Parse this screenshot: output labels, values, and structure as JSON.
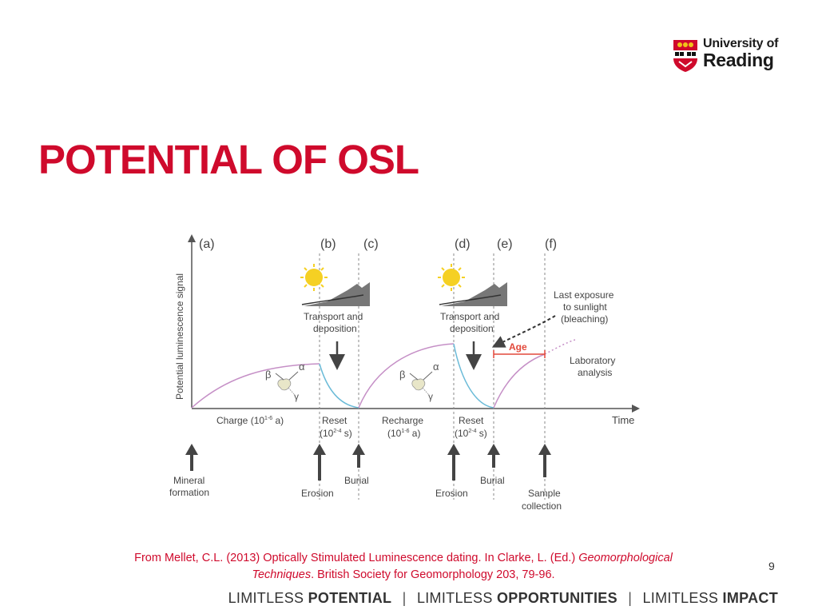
{
  "header": {
    "logo": {
      "line1": "University of",
      "line2": "Reading"
    },
    "title": "POTENTIAL OF OSL"
  },
  "figure": {
    "ylabel": "Potential luminescence signal",
    "xlabel": "Time",
    "phase_labels": [
      "(a)",
      "(b)",
      "(c)",
      "(d)",
      "(e)",
      "(f)"
    ],
    "stage_labels": {
      "charge": "Charge (10",
      "charge_sup": "1-6",
      "charge_end": " a)",
      "reset1_a": "Reset",
      "reset1_b": "(10",
      "reset1_sup": "2-4",
      "reset1_c": " s)",
      "recharge_a": "Recharge",
      "recharge_b": "(10",
      "recharge_sup": "1-6",
      "recharge_c": " a)",
      "reset2_a": "Reset",
      "reset2_b": "(10",
      "reset2_sup": "2-4",
      "reset2_c": " s)"
    },
    "transport1_a": "Transport and",
    "transport1_b": "deposition",
    "transport2_a": "Transport and",
    "transport2_b": "deposition",
    "last_exposure_a": "Last exposure",
    "last_exposure_b": "to sunlight",
    "last_exposure_c": "(bleaching)",
    "age_label": "Age",
    "lab_a": "Laboratory",
    "lab_b": "analysis",
    "greek": {
      "beta": "β",
      "alpha": "α",
      "gamma": "γ"
    },
    "events": {
      "mineral_a": "Mineral",
      "mineral_b": "formation",
      "erosion1": "Erosion",
      "burial1": "Burial",
      "erosion2": "Erosion",
      "burial2": "Burial",
      "sample_a": "Sample",
      "sample_b": "collection"
    },
    "colors": {
      "charge_curve": "#c58fc6",
      "reset_curve": "#6bbbd8",
      "age": "#e2493b",
      "sun": "#f5d023"
    }
  },
  "citation": {
    "prefix": "From Mellet, C.L.  (2013) Optically Stimulated Luminescence dating. In Clarke, L. (Ed.) ",
    "italic1": "Geomorphological",
    "italic2": "Techniques",
    "suffix": ". British Society for Geomorphology 203, 79-96."
  },
  "page_number": "9",
  "footer": {
    "w1": "LIMITLESS ",
    "b1": "POTENTIAL",
    "w2": "LIMITLESS ",
    "b2": "OPPORTUNITIES",
    "w3": "LIMITLESS ",
    "b3": "IMPACT",
    "separator": "|"
  }
}
